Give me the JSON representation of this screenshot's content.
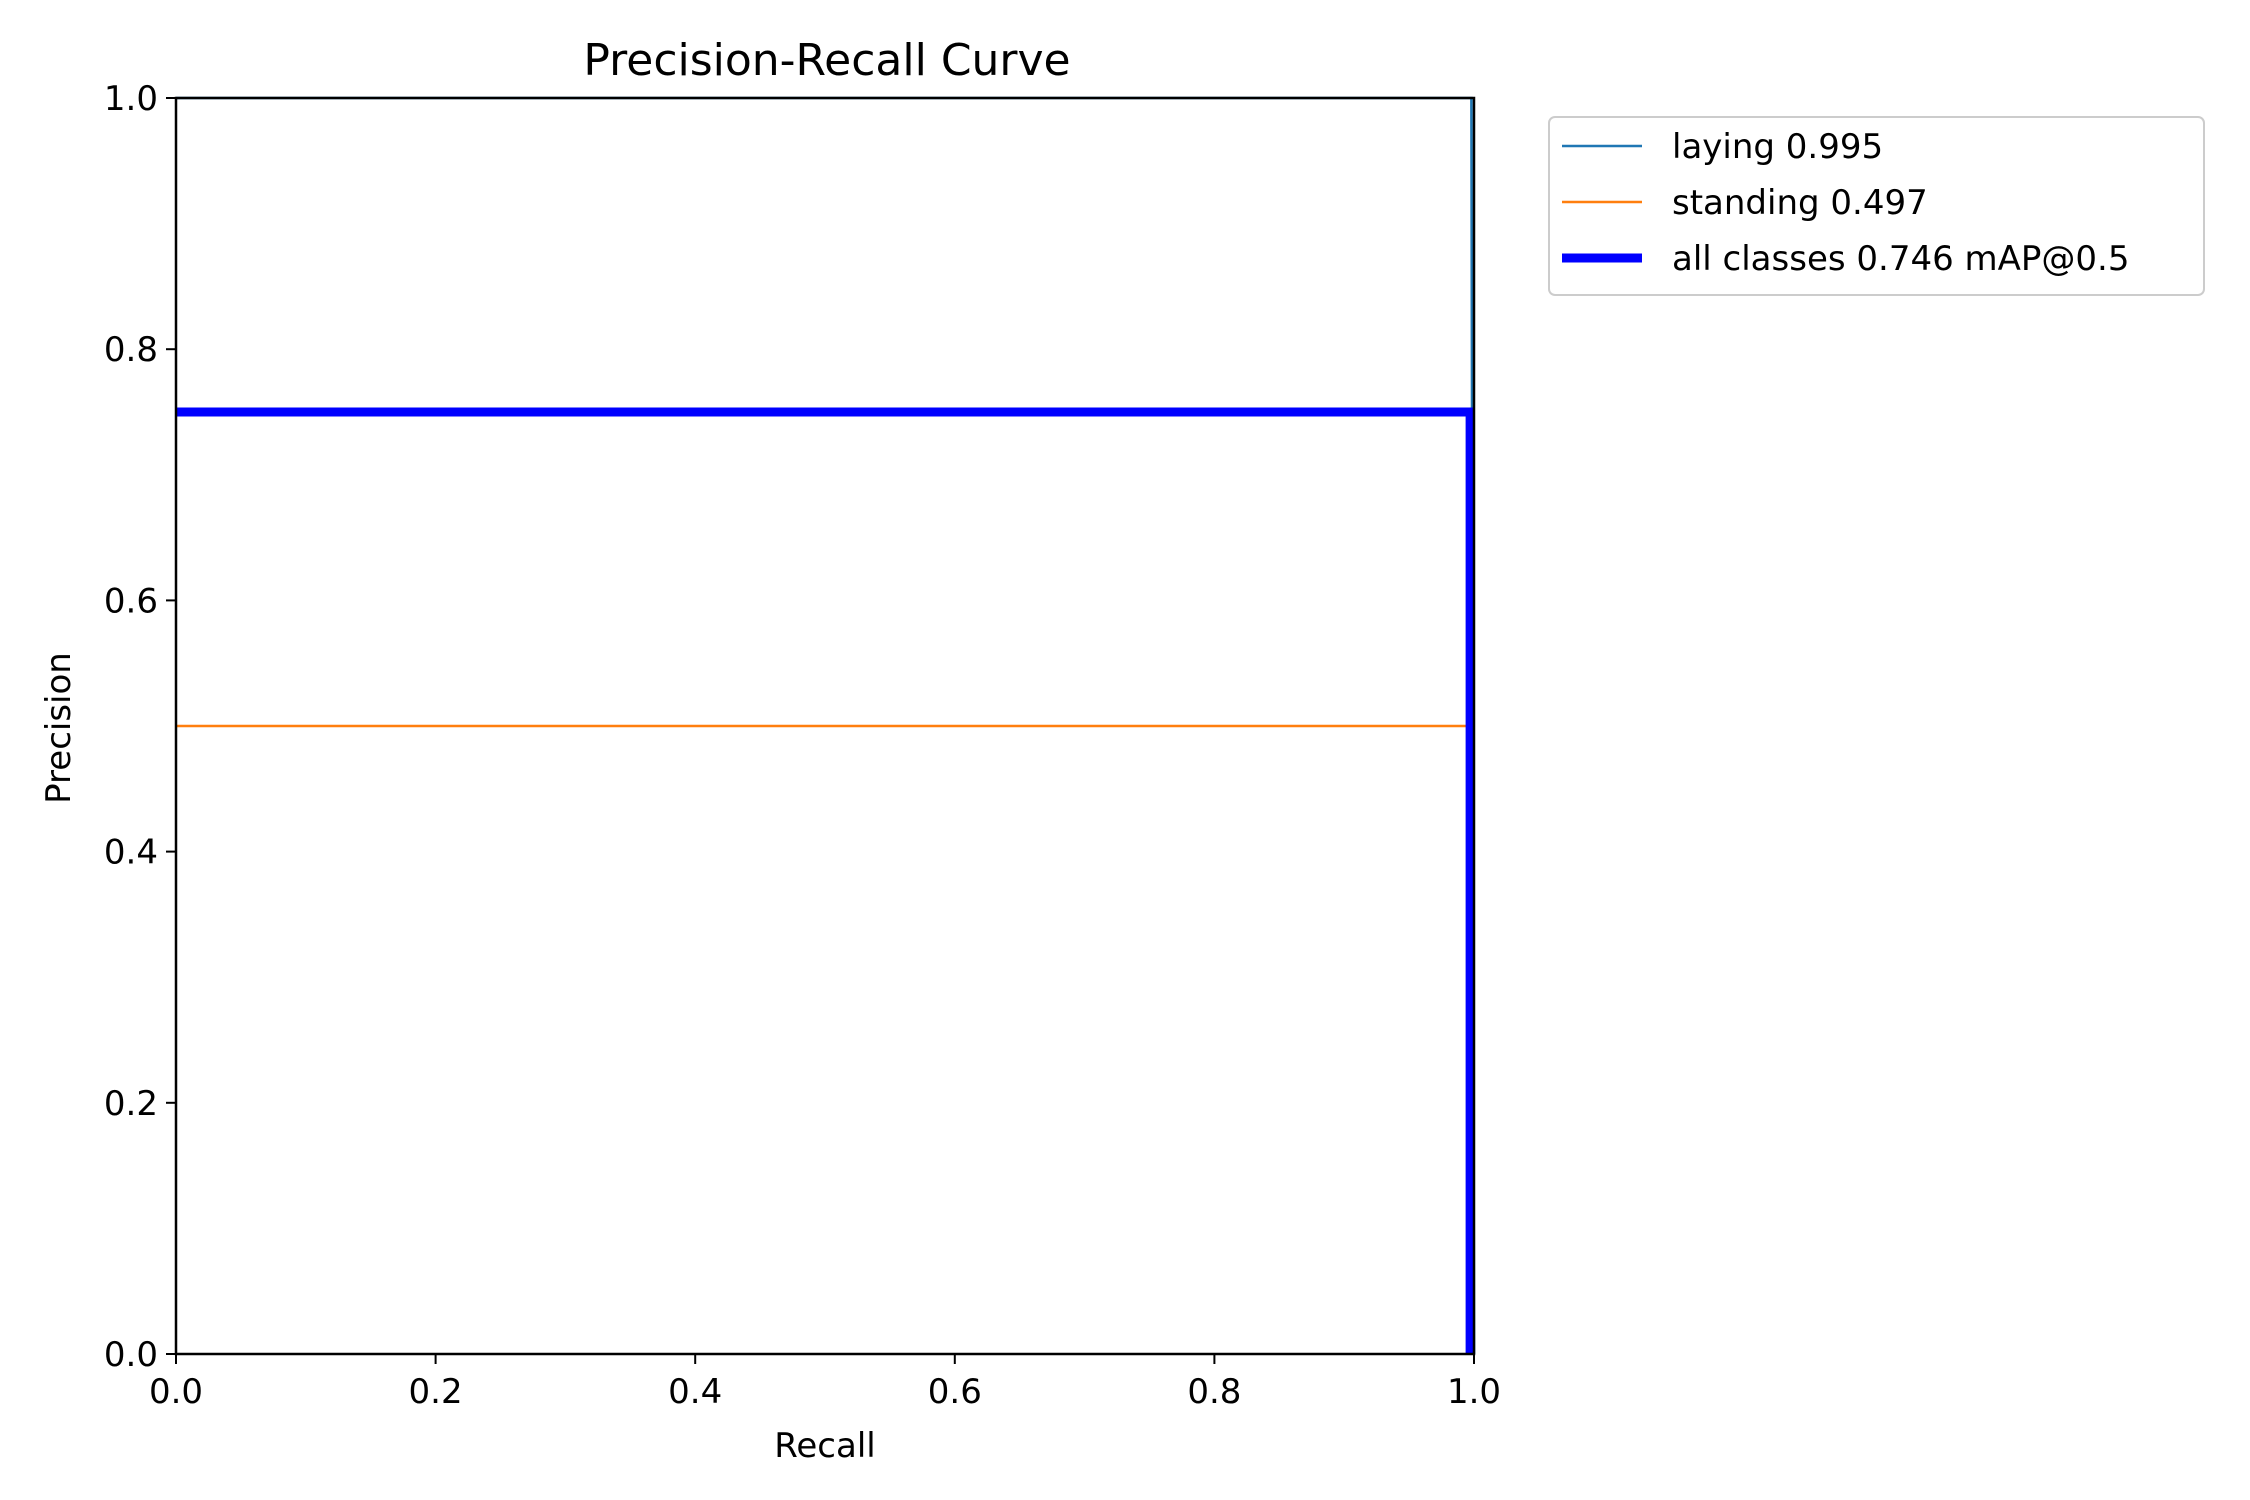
{
  "chart_data": {
    "type": "line",
    "title": "Precision-Recall Curve",
    "xlabel": "Recall",
    "ylabel": "Precision",
    "xlim": [
      0.0,
      1.0
    ],
    "ylim": [
      0.0,
      1.0
    ],
    "xticks": [
      "0.0",
      "0.2",
      "0.4",
      "0.6",
      "0.8",
      "1.0"
    ],
    "yticks": [
      "0.0",
      "0.2",
      "0.4",
      "0.6",
      "0.8",
      "1.0"
    ],
    "grid": false,
    "legend_position": "outside-top-right",
    "series": [
      {
        "name": "laying 0.995",
        "color": "#1f77b4",
        "line_width": "thin",
        "x": [
          0.0,
          0.998,
          0.998,
          1.0
        ],
        "y": [
          1.0,
          1.0,
          1.0,
          0.0
        ]
      },
      {
        "name": "standing 0.497",
        "color": "#ff7f0e",
        "line_width": "thin",
        "x": [
          0.0,
          0.995,
          0.995
        ],
        "y": [
          0.5,
          0.5,
          0.0
        ]
      },
      {
        "name": "all classes 0.746 mAP@0.5",
        "color": "#0000ff",
        "line_width": "thick",
        "x": [
          0.0,
          0.997,
          0.997
        ],
        "y": [
          0.75,
          0.75,
          0.0
        ]
      }
    ]
  }
}
